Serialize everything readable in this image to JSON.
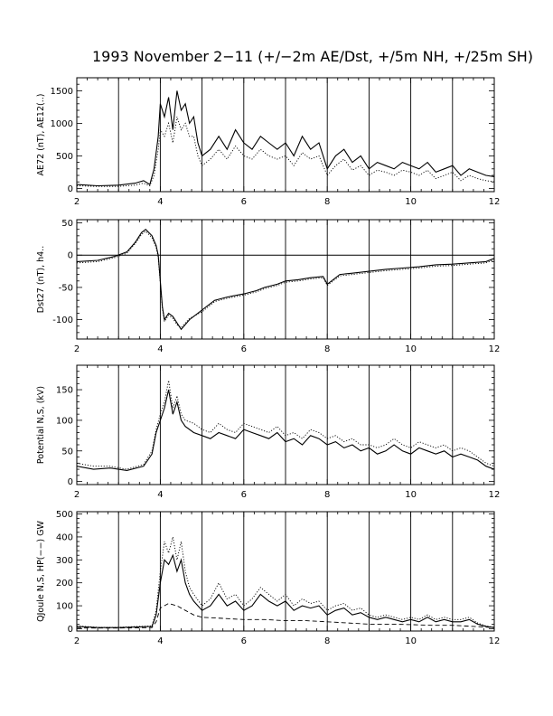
{
  "title": "1993 November 2−11 (+/−2m AE/Dst, +/5m NH, +/25m SH)",
  "chart_data": [
    {
      "type": "line",
      "ylabel": "AE72 (nT), AE12(..)",
      "xlim": [
        2,
        12
      ],
      "ylim": [
        -50,
        1700
      ],
      "xticks": [
        2,
        4,
        6,
        8,
        10,
        12
      ],
      "yticks": [
        0,
        500,
        1000,
        1500
      ],
      "vlines": [
        3,
        4,
        5,
        6,
        7,
        8,
        9,
        10,
        11
      ],
      "hlines": [],
      "series": [
        {
          "style": "solid",
          "x": [
            2.0,
            2.5,
            3.0,
            3.4,
            3.6,
            3.75,
            3.85,
            3.95,
            4.0,
            4.1,
            4.2,
            4.3,
            4.4,
            4.5,
            4.6,
            4.7,
            4.8,
            4.9,
            5.0,
            5.2,
            5.4,
            5.6,
            5.8,
            6.0,
            6.2,
            6.4,
            6.6,
            6.8,
            7.0,
            7.2,
            7.4,
            7.6,
            7.8,
            8.0,
            8.2,
            8.4,
            8.6,
            8.8,
            9.0,
            9.2,
            9.4,
            9.6,
            9.8,
            10.0,
            10.2,
            10.4,
            10.6,
            10.8,
            11.0,
            11.2,
            11.4,
            11.6,
            11.8,
            12.0
          ],
          "y": [
            60,
            40,
            50,
            80,
            120,
            60,
            300,
            800,
            1300,
            1100,
            1400,
            900,
            1500,
            1200,
            1300,
            1000,
            1100,
            700,
            500,
            600,
            800,
            600,
            900,
            700,
            600,
            800,
            700,
            600,
            700,
            500,
            800,
            600,
            700,
            300,
            500,
            600,
            400,
            500,
            300,
            400,
            350,
            300,
            400,
            350,
            300,
            400,
            250,
            300,
            350,
            200,
            300,
            250,
            200,
            180
          ]
        },
        {
          "style": "dotted",
          "x": [
            2.0,
            2.5,
            3.0,
            3.4,
            3.6,
            3.75,
            3.85,
            3.95,
            4.0,
            4.1,
            4.2,
            4.3,
            4.4,
            4.5,
            4.6,
            4.7,
            4.8,
            4.9,
            5.0,
            5.2,
            5.4,
            5.6,
            5.8,
            6.0,
            6.2,
            6.4,
            6.6,
            6.8,
            7.0,
            7.2,
            7.4,
            7.6,
            7.8,
            8.0,
            8.2,
            8.4,
            8.6,
            8.8,
            9.0,
            9.2,
            9.4,
            9.6,
            9.8,
            10.0,
            10.2,
            10.4,
            10.6,
            10.8,
            11.0,
            11.2,
            11.4,
            11.6,
            11.8,
            12.0
          ],
          "y": [
            40,
            30,
            30,
            50,
            80,
            40,
            200,
            600,
            900,
            800,
            1000,
            700,
            1100,
            900,
            1000,
            800,
            800,
            500,
            350,
            450,
            600,
            450,
            650,
            500,
            450,
            600,
            500,
            450,
            500,
            350,
            550,
            450,
            500,
            200,
            350,
            450,
            280,
            350,
            200,
            280,
            250,
            200,
            280,
            250,
            200,
            280,
            150,
            200,
            250,
            120,
            200,
            150,
            120,
            100
          ]
        }
      ]
    },
    {
      "type": "line",
      "ylabel": "Dst27 (nT), h4..",
      "xlim": [
        2,
        12
      ],
      "ylim": [
        -130,
        55
      ],
      "xticks": [
        2,
        4,
        6,
        8,
        10,
        12
      ],
      "yticks": [
        -100,
        -50,
        0,
        50
      ],
      "vlines": [
        3,
        4,
        5,
        6,
        7,
        8,
        9,
        10,
        11
      ],
      "hlines": [
        0
      ],
      "series": [
        {
          "style": "solid",
          "x": [
            2.0,
            2.5,
            2.9,
            3.2,
            3.4,
            3.55,
            3.65,
            3.8,
            3.9,
            3.95,
            4.0,
            4.05,
            4.1,
            4.2,
            4.3,
            4.4,
            4.5,
            4.7,
            5.0,
            5.3,
            5.6,
            6.0,
            6.3,
            6.5,
            6.8,
            7.0,
            7.3,
            7.6,
            7.9,
            8.0,
            8.3,
            8.6,
            9.0,
            9.4,
            9.8,
            10.2,
            10.6,
            11.0,
            11.4,
            11.8,
            12.0
          ],
          "y": [
            -10,
            -8,
            -2,
            5,
            20,
            35,
            40,
            30,
            15,
            0,
            -40,
            -80,
            -100,
            -90,
            -95,
            -105,
            -115,
            -100,
            -85,
            -70,
            -65,
            -60,
            -55,
            -50,
            -45,
            -40,
            -38,
            -35,
            -33,
            -45,
            -30,
            -28,
            -25,
            -22,
            -20,
            -18,
            -15,
            -14,
            -12,
            -10,
            -5
          ]
        },
        {
          "style": "dotted",
          "x": [
            2.0,
            2.5,
            2.9,
            3.2,
            3.4,
            3.55,
            3.65,
            3.8,
            3.9,
            3.95,
            4.0,
            4.05,
            4.1,
            4.2,
            4.3,
            4.4,
            4.5,
            4.7,
            5.0,
            5.3,
            5.6,
            6.0,
            6.3,
            6.5,
            6.8,
            7.0,
            7.3,
            7.6,
            7.9,
            8.0,
            8.3,
            8.6,
            9.0,
            9.4,
            9.8,
            10.2,
            10.6,
            11.0,
            11.4,
            11.8,
            12.0
          ],
          "y": [
            -12,
            -10,
            -4,
            3,
            18,
            32,
            37,
            27,
            12,
            -3,
            -43,
            -83,
            -103,
            -93,
            -98,
            -108,
            -112,
            -98,
            -88,
            -72,
            -67,
            -62,
            -57,
            -52,
            -47,
            -42,
            -40,
            -37,
            -35,
            -47,
            -32,
            -30,
            -27,
            -24,
            -22,
            -20,
            -17,
            -16,
            -14,
            -12,
            -7
          ]
        }
      ]
    },
    {
      "type": "line",
      "ylabel": "Potential N,S, (kV)",
      "xlim": [
        2,
        12
      ],
      "ylim": [
        -5,
        190
      ],
      "xticks": [
        2,
        4,
        6,
        8,
        10,
        12
      ],
      "yticks": [
        0,
        50,
        100,
        150
      ],
      "vlines": [
        3,
        4,
        5,
        6,
        7,
        8,
        9,
        10,
        11
      ],
      "hlines": [],
      "series": [
        {
          "style": "solid",
          "x": [
            2.0,
            2.4,
            2.8,
            3.2,
            3.6,
            3.8,
            3.9,
            4.0,
            4.1,
            4.2,
            4.3,
            4.4,
            4.5,
            4.6,
            4.8,
            5.0,
            5.2,
            5.4,
            5.6,
            5.8,
            6.0,
            6.2,
            6.4,
            6.6,
            6.8,
            7.0,
            7.2,
            7.4,
            7.6,
            7.8,
            8.0,
            8.2,
            8.4,
            8.6,
            8.8,
            9.0,
            9.2,
            9.4,
            9.6,
            9.8,
            10.0,
            10.2,
            10.4,
            10.6,
            10.8,
            11.0,
            11.2,
            11.4,
            11.6,
            11.8,
            12.0
          ],
          "y": [
            25,
            20,
            22,
            18,
            25,
            45,
            80,
            100,
            120,
            150,
            110,
            130,
            100,
            90,
            80,
            75,
            70,
            80,
            75,
            70,
            85,
            80,
            75,
            70,
            80,
            65,
            70,
            60,
            75,
            70,
            60,
            65,
            55,
            60,
            50,
            55,
            45,
            50,
            60,
            50,
            45,
            55,
            50,
            45,
            50,
            40,
            45,
            40,
            35,
            25,
            20
          ]
        },
        {
          "style": "dotted",
          "x": [
            2.0,
            2.4,
            2.8,
            3.2,
            3.6,
            3.8,
            3.9,
            4.0,
            4.1,
            4.2,
            4.3,
            4.4,
            4.5,
            4.6,
            4.8,
            5.0,
            5.2,
            5.4,
            5.6,
            5.8,
            6.0,
            6.2,
            6.4,
            6.6,
            6.8,
            7.0,
            7.2,
            7.4,
            7.6,
            7.8,
            8.0,
            8.2,
            8.4,
            8.6,
            8.8,
            9.0,
            9.2,
            9.4,
            9.6,
            9.8,
            10.0,
            10.2,
            10.4,
            10.6,
            10.8,
            11.0,
            11.2,
            11.4,
            11.6,
            11.8,
            12.0
          ],
          "y": [
            30,
            25,
            25,
            20,
            28,
            50,
            85,
            110,
            130,
            165,
            120,
            140,
            110,
            100,
            95,
            85,
            80,
            95,
            85,
            80,
            95,
            90,
            85,
            80,
            90,
            75,
            80,
            70,
            85,
            80,
            70,
            75,
            65,
            70,
            60,
            60,
            55,
            60,
            70,
            60,
            55,
            65,
            60,
            55,
            60,
            50,
            55,
            50,
            40,
            30,
            25
          ]
        }
      ]
    },
    {
      "type": "line",
      "ylabel": "QJoule N,S, HP(−−) GW",
      "xlim": [
        2,
        12
      ],
      "ylim": [
        -10,
        510
      ],
      "xticks": [
        2,
        4,
        6,
        8,
        10,
        12
      ],
      "yticks": [
        0,
        100,
        200,
        300,
        400,
        500
      ],
      "vlines": [
        3,
        4,
        5,
        6,
        7,
        8,
        9,
        10,
        11
      ],
      "hlines": [],
      "series": [
        {
          "style": "solid",
          "x": [
            2.0,
            2.5,
            3.0,
            3.5,
            3.8,
            3.9,
            4.0,
            4.1,
            4.2,
            4.3,
            4.4,
            4.5,
            4.6,
            4.7,
            4.8,
            5.0,
            5.2,
            5.4,
            5.6,
            5.8,
            6.0,
            6.2,
            6.4,
            6.6,
            6.8,
            7.0,
            7.2,
            7.4,
            7.6,
            7.8,
            8.0,
            8.2,
            8.4,
            8.6,
            8.8,
            9.0,
            9.2,
            9.4,
            9.6,
            9.8,
            10.0,
            10.2,
            10.4,
            10.6,
            10.8,
            11.0,
            11.2,
            11.4,
            11.6,
            11.8,
            12.0
          ],
          "y": [
            10,
            5,
            5,
            8,
            10,
            60,
            200,
            300,
            280,
            320,
            250,
            300,
            200,
            150,
            120,
            80,
            100,
            150,
            100,
            120,
            80,
            100,
            150,
            120,
            100,
            120,
            80,
            100,
            90,
            100,
            60,
            80,
            90,
            60,
            70,
            50,
            40,
            50,
            40,
            30,
            40,
            30,
            50,
            30,
            40,
            30,
            30,
            40,
            20,
            10,
            5
          ]
        },
        {
          "style": "dotted",
          "x": [
            2.0,
            2.5,
            3.0,
            3.5,
            3.8,
            3.9,
            4.0,
            4.1,
            4.2,
            4.3,
            4.4,
            4.5,
            4.6,
            4.7,
            4.8,
            5.0,
            5.2,
            5.4,
            5.6,
            5.8,
            6.0,
            6.2,
            6.4,
            6.6,
            6.8,
            7.0,
            7.2,
            7.4,
            7.6,
            7.8,
            8.0,
            8.2,
            8.4,
            8.6,
            8.8,
            9.0,
            9.2,
            9.4,
            9.6,
            9.8,
            10.0,
            10.2,
            10.4,
            10.6,
            10.8,
            11.0,
            11.2,
            11.4,
            11.6,
            11.8,
            12.0
          ],
          "y": [
            12,
            6,
            6,
            10,
            12,
            80,
            250,
            380,
            330,
            400,
            300,
            380,
            250,
            180,
            150,
            100,
            130,
            200,
            130,
            150,
            100,
            130,
            180,
            150,
            120,
            150,
            100,
            130,
            110,
            120,
            80,
            100,
            110,
            80,
            90,
            60,
            50,
            60,
            50,
            40,
            50,
            40,
            60,
            40,
            50,
            40,
            40,
            50,
            25,
            12,
            6
          ]
        },
        {
          "style": "dashed",
          "x": [
            2.0,
            3.0,
            3.8,
            3.9,
            4.0,
            4.2,
            4.4,
            4.6,
            4.8,
            5.0,
            5.5,
            6.0,
            6.5,
            7.0,
            7.5,
            8.0,
            8.5,
            9.0,
            9.5,
            10.0,
            10.5,
            11.0,
            11.5,
            12.0
          ],
          "y": [
            3,
            3,
            5,
            30,
            90,
            110,
            100,
            80,
            60,
            50,
            45,
            40,
            40,
            35,
            35,
            30,
            25,
            20,
            20,
            18,
            15,
            15,
            10,
            5
          ]
        }
      ]
    }
  ]
}
